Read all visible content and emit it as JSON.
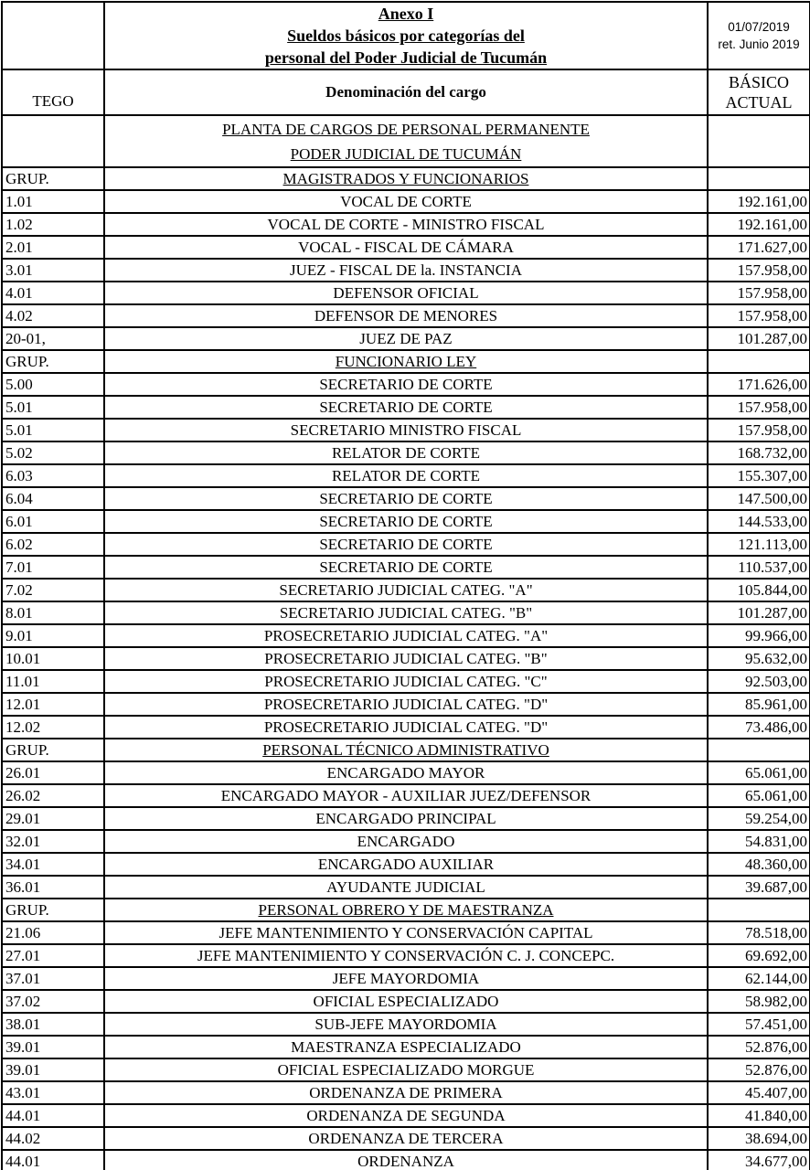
{
  "document": {
    "title_lines": [
      "Anexo I",
      "Sueldos básicos por categorías del",
      "personal del Poder Judicial de Tucumán"
    ],
    "date": "01/07/2019",
    "retro": "ret. Junio 2019"
  },
  "columns": {
    "category": "TEGO",
    "denomination": "Denominación del cargo",
    "basic_line1": "BÁSICO",
    "basic_line2": "ACTUAL"
  },
  "subtitle": {
    "line1": "PLANTA DE CARGOS DE PERSONAL PERMANENTE",
    "line2": "PODER JUDICIAL DE TUCUMÁN"
  },
  "rows": [
    {
      "type": "group",
      "code": "GRUP.",
      "label": "MAGISTRADOS Y FUNCIONARIOS",
      "amount": ""
    },
    {
      "type": "data",
      "code": "1.01",
      "label": "VOCAL DE CORTE",
      "amount": "192.161,00"
    },
    {
      "type": "data",
      "code": "1.02",
      "label": "VOCAL DE CORTE - MINISTRO FISCAL",
      "amount": "192.161,00"
    },
    {
      "type": "data",
      "code": "2.01",
      "label": "VOCAL - FISCAL DE CÁMARA",
      "amount": "171.627,00"
    },
    {
      "type": "data",
      "code": "3.01",
      "label": "JUEZ - FISCAL DE la. INSTANCIA",
      "amount": "157.958,00"
    },
    {
      "type": "data",
      "code": "4.01",
      "label": "DEFENSOR OFICIAL",
      "amount": "157.958,00"
    },
    {
      "type": "data",
      "code": "4.02",
      "label": "DEFENSOR DE MENORES",
      "amount": "157.958,00"
    },
    {
      "type": "data",
      "code": "20-01,",
      "label": "JUEZ DE PAZ",
      "amount": "101.287,00"
    },
    {
      "type": "group",
      "code": "GRUP.",
      "label": "FUNCIONARIO LEY",
      "amount": ""
    },
    {
      "type": "data",
      "code": "5.00",
      "label": "SECRETARIO DE CORTE",
      "amount": "171.626,00"
    },
    {
      "type": "data",
      "code": "5.01",
      "label": "SECRETARIO DE CORTE",
      "amount": "157.958,00"
    },
    {
      "type": "data",
      "code": "5.01",
      "label": "SECRETARIO MINISTRO FISCAL",
      "amount": "157.958,00"
    },
    {
      "type": "data",
      "code": "5.02",
      "label": "RELATOR DE CORTE",
      "amount": "168.732,00"
    },
    {
      "type": "data",
      "code": "6.03",
      "label": "RELATOR DE CORTE",
      "amount": "155.307,00"
    },
    {
      "type": "data",
      "code": "6.04",
      "label": "SECRETARIO DE CORTE",
      "amount": "147.500,00"
    },
    {
      "type": "data",
      "code": "6.01",
      "label": "SECRETARIO DE CORTE",
      "amount": "144.533,00"
    },
    {
      "type": "data",
      "code": "6.02",
      "label": "SECRETARIO DE CORTE",
      "amount": "121.113,00"
    },
    {
      "type": "data",
      "code": "7.01",
      "label": "SECRETARIO DE CORTE",
      "amount": "110.537,00"
    },
    {
      "type": "data",
      "code": "7.02",
      "label": "SECRETARIO JUDICIAL CATEG. \"A\"",
      "amount": "105.844,00"
    },
    {
      "type": "data",
      "code": "8.01",
      "label": "SECRETARIO JUDICIAL CATEG. \"B\"",
      "amount": "101.287,00"
    },
    {
      "type": "data",
      "code": "9.01",
      "label": "PROSECRETARIO JUDICIAL CATEG. \"A\"",
      "amount": "99.966,00"
    },
    {
      "type": "data",
      "code": "10.01",
      "label": "PROSECRETARIO JUDICIAL CATEG. \"B\"",
      "amount": "95.632,00"
    },
    {
      "type": "data",
      "code": "11.01",
      "label": "PROSECRETARIO JUDICIAL CATEG. \"C\"",
      "amount": "92.503,00"
    },
    {
      "type": "data",
      "code": "12.01",
      "label": "PROSECRETARIO JUDICIAL CATEG. \"D\"",
      "amount": "85.961,00"
    },
    {
      "type": "data",
      "code": "12.02",
      "label": "PROSECRETARIO JUDICIAL CATEG. \"D\"",
      "amount": "73.486,00"
    },
    {
      "type": "group",
      "code": "GRUP.",
      "label": "PERSONAL TÉCNICO ADMINISTRATIVO",
      "amount": ""
    },
    {
      "type": "data",
      "code": "26.01",
      "label": "ENCARGADO MAYOR",
      "amount": "65.061,00"
    },
    {
      "type": "data",
      "code": "26.02",
      "label": "ENCARGADO MAYOR - AUXILIAR JUEZ/DEFENSOR",
      "amount": "65.061,00"
    },
    {
      "type": "data",
      "code": "29.01",
      "label": "ENCARGADO PRINCIPAL",
      "amount": "59.254,00"
    },
    {
      "type": "data",
      "code": "32.01",
      "label": "ENCARGADO",
      "amount": "54.831,00"
    },
    {
      "type": "data",
      "code": "34.01",
      "label": "ENCARGADO AUXILIAR",
      "amount": "48.360,00"
    },
    {
      "type": "data",
      "code": "36.01",
      "label": "AYUDANTE JUDICIAL",
      "amount": "39.687,00"
    },
    {
      "type": "group",
      "code": "GRUP.",
      "label": "PERSONAL OBRERO Y DE MAESTRANZA",
      "amount": ""
    },
    {
      "type": "data",
      "code": "21.06",
      "label": "JEFE MANTENIMIENTO Y CONSERVACIÓN CAPITAL",
      "amount": "78.518,00"
    },
    {
      "type": "data",
      "code": "27.01",
      "label": "JEFE MANTENIMIENTO Y CONSERVACIÓN C. J. CONCEPC.",
      "amount": "69.692,00"
    },
    {
      "type": "data",
      "code": "37.01",
      "label": "JEFE MAYORDOMIA",
      "amount": "62.144,00"
    },
    {
      "type": "data",
      "code": "37.02",
      "label": "OFICIAL ESPECIALIZADO",
      "amount": "58.982,00"
    },
    {
      "type": "data",
      "code": "38.01",
      "label": "SUB-JEFE MAYORDOMIA",
      "amount": "57.451,00"
    },
    {
      "type": "data",
      "code": "39.01",
      "label": "MAESTRANZA ESPECIALIZADO",
      "amount": "52.876,00"
    },
    {
      "type": "data",
      "code": "39.01",
      "label": "OFICIAL ESPECIALIZADO MORGUE",
      "amount": "52.876,00"
    },
    {
      "type": "data",
      "code": "43.01",
      "label": "ORDENANZA DE PRIMERA",
      "amount": "45.407,00"
    },
    {
      "type": "data",
      "code": "44.01",
      "label": "ORDENANZA DE SEGUNDA",
      "amount": "41.840,00"
    },
    {
      "type": "data",
      "code": "44.02",
      "label": "ORDENANZA DE TERCERA",
      "amount": "38.694,00"
    },
    {
      "type": "data",
      "code": "44.01",
      "label": "ORDENANZA",
      "amount": "34.677,00"
    }
  ],
  "colors": {
    "border": "#000000",
    "background": "#ffffff",
    "text": "#000000"
  }
}
